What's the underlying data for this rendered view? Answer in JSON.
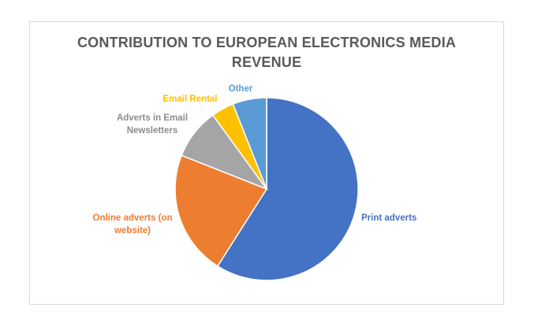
{
  "chart_data": {
    "type": "pie",
    "title_lines": [
      "CONTRIBUTION TO EUROPEAN ELECTRONICS MEDIA",
      "REVENUE"
    ],
    "slices": [
      {
        "label_lines": [
          "Print adverts"
        ],
        "value": 59,
        "color": "#4472C4"
      },
      {
        "label_lines": [
          "Online adverts (on",
          "website)"
        ],
        "value": 22,
        "color": "#ED7D31"
      },
      {
        "label_lines": [
          "Adverts in Email",
          "Newsletters"
        ],
        "value": 9,
        "color": "#A5A5A5"
      },
      {
        "label_lines": [
          "Email Rental"
        ],
        "value": 4,
        "color": "#FFC000"
      },
      {
        "label_lines": [
          "Other"
        ],
        "value": 6,
        "color": "#5B9BD5"
      }
    ],
    "start_angle": "12 o'clock",
    "direction": "clockwise",
    "legend": "none"
  }
}
